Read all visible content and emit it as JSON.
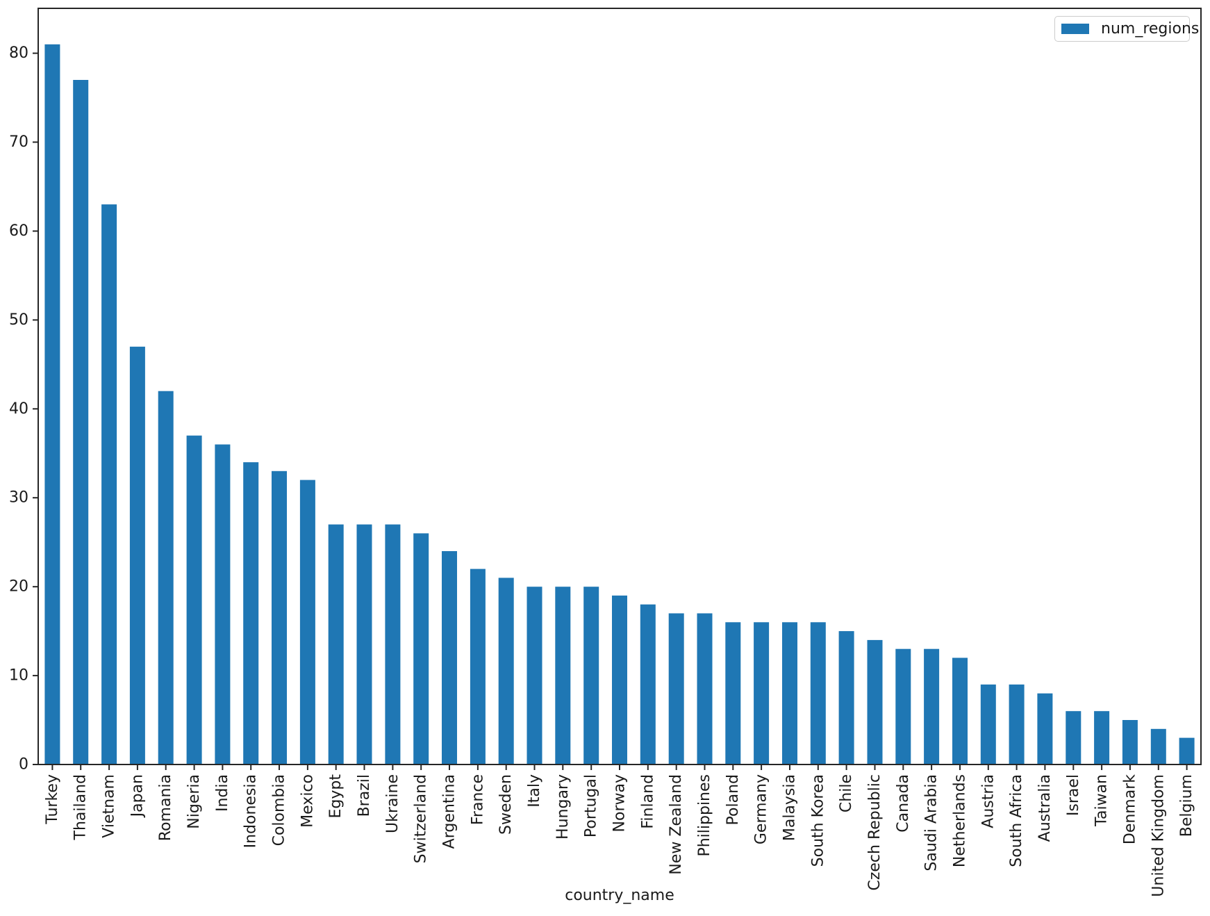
{
  "chart_data": {
    "type": "bar",
    "title": "",
    "xlabel": "country_name",
    "ylabel": "",
    "grid": false,
    "legend_position": "upper right",
    "bar_color": "#1f77b4",
    "axis_color": "#262626",
    "text_color": "#1a1a1a",
    "legend_border_color": "#cccccc",
    "ylim": [
      0,
      85.05
    ],
    "yticks": [
      0,
      10,
      20,
      30,
      40,
      50,
      60,
      70,
      80
    ],
    "categories": [
      "Turkey",
      "Thailand",
      "Vietnam",
      "Japan",
      "Romania",
      "Nigeria",
      "India",
      "Indonesia",
      "Colombia",
      "Mexico",
      "Egypt",
      "Brazil",
      "Ukraine",
      "Switzerland",
      "Argentina",
      "France",
      "Sweden",
      "Italy",
      "Hungary",
      "Portugal",
      "Norway",
      "Finland",
      "New Zealand",
      "Philippines",
      "Poland",
      "Germany",
      "Malaysia",
      "South Korea",
      "Chile",
      "Czech Republic",
      "Canada",
      "Saudi Arabia",
      "Netherlands",
      "Austria",
      "South Africa",
      "Australia",
      "Israel",
      "Taiwan",
      "Denmark",
      "United Kingdom",
      "Belgium"
    ],
    "series": [
      {
        "name": "num_regions",
        "values": [
          81,
          77,
          63,
          47,
          42,
          37,
          36,
          34,
          33,
          32,
          27,
          27,
          27,
          26,
          24,
          22,
          21,
          20,
          20,
          20,
          19,
          18,
          17,
          17,
          16,
          16,
          16,
          16,
          15,
          14,
          13,
          13,
          12,
          9,
          9,
          8,
          6,
          6,
          5,
          4,
          3
        ]
      }
    ]
  }
}
